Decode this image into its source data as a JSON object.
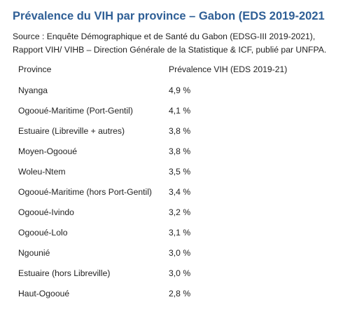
{
  "title": "Prévalence du VIH par province – Gabon (EDS 2019-2021",
  "source": "Source : Enquête Démographique et de Santé du Gabon (EDSG-III 2019-2021), Rapport VIH/ VIHB – Direction Générale de la Statistique & ICF, publié par UNFPA.",
  "table": {
    "headers": [
      "Province",
      "Prévalence VIH (EDS 2019-21)"
    ],
    "rows": [
      {
        "province": "Nyanga",
        "value": "4,9 %"
      },
      {
        "province": "Ogooué-Maritime (Port-Gentil)",
        "value": "4,1 %"
      },
      {
        "province": "Estuaire (Libreville + autres)",
        "value": "3,8 %"
      },
      {
        "province": "Moyen-Ogooué",
        "value": "3,8 %"
      },
      {
        "province": "Woleu-Ntem",
        "value": "3,5 %"
      },
      {
        "province": "Ogooué-Maritime (hors Port-Gentil)",
        "value": "3,4 %"
      },
      {
        "province": "Ogooué-Ivindo",
        "value": "3,2 %"
      },
      {
        "province": "Ogooué-Lolo",
        "value": "3,1 %"
      },
      {
        "province": "Ngounié",
        "value": "3,0 %"
      },
      {
        "province": "Estuaire (hors Libreville)",
        "value": "3,0 %"
      },
      {
        "province": "Haut-Ogooué",
        "value": "2,8 %"
      }
    ]
  },
  "colors": {
    "title": "#2f5f96",
    "text": "#222222"
  }
}
